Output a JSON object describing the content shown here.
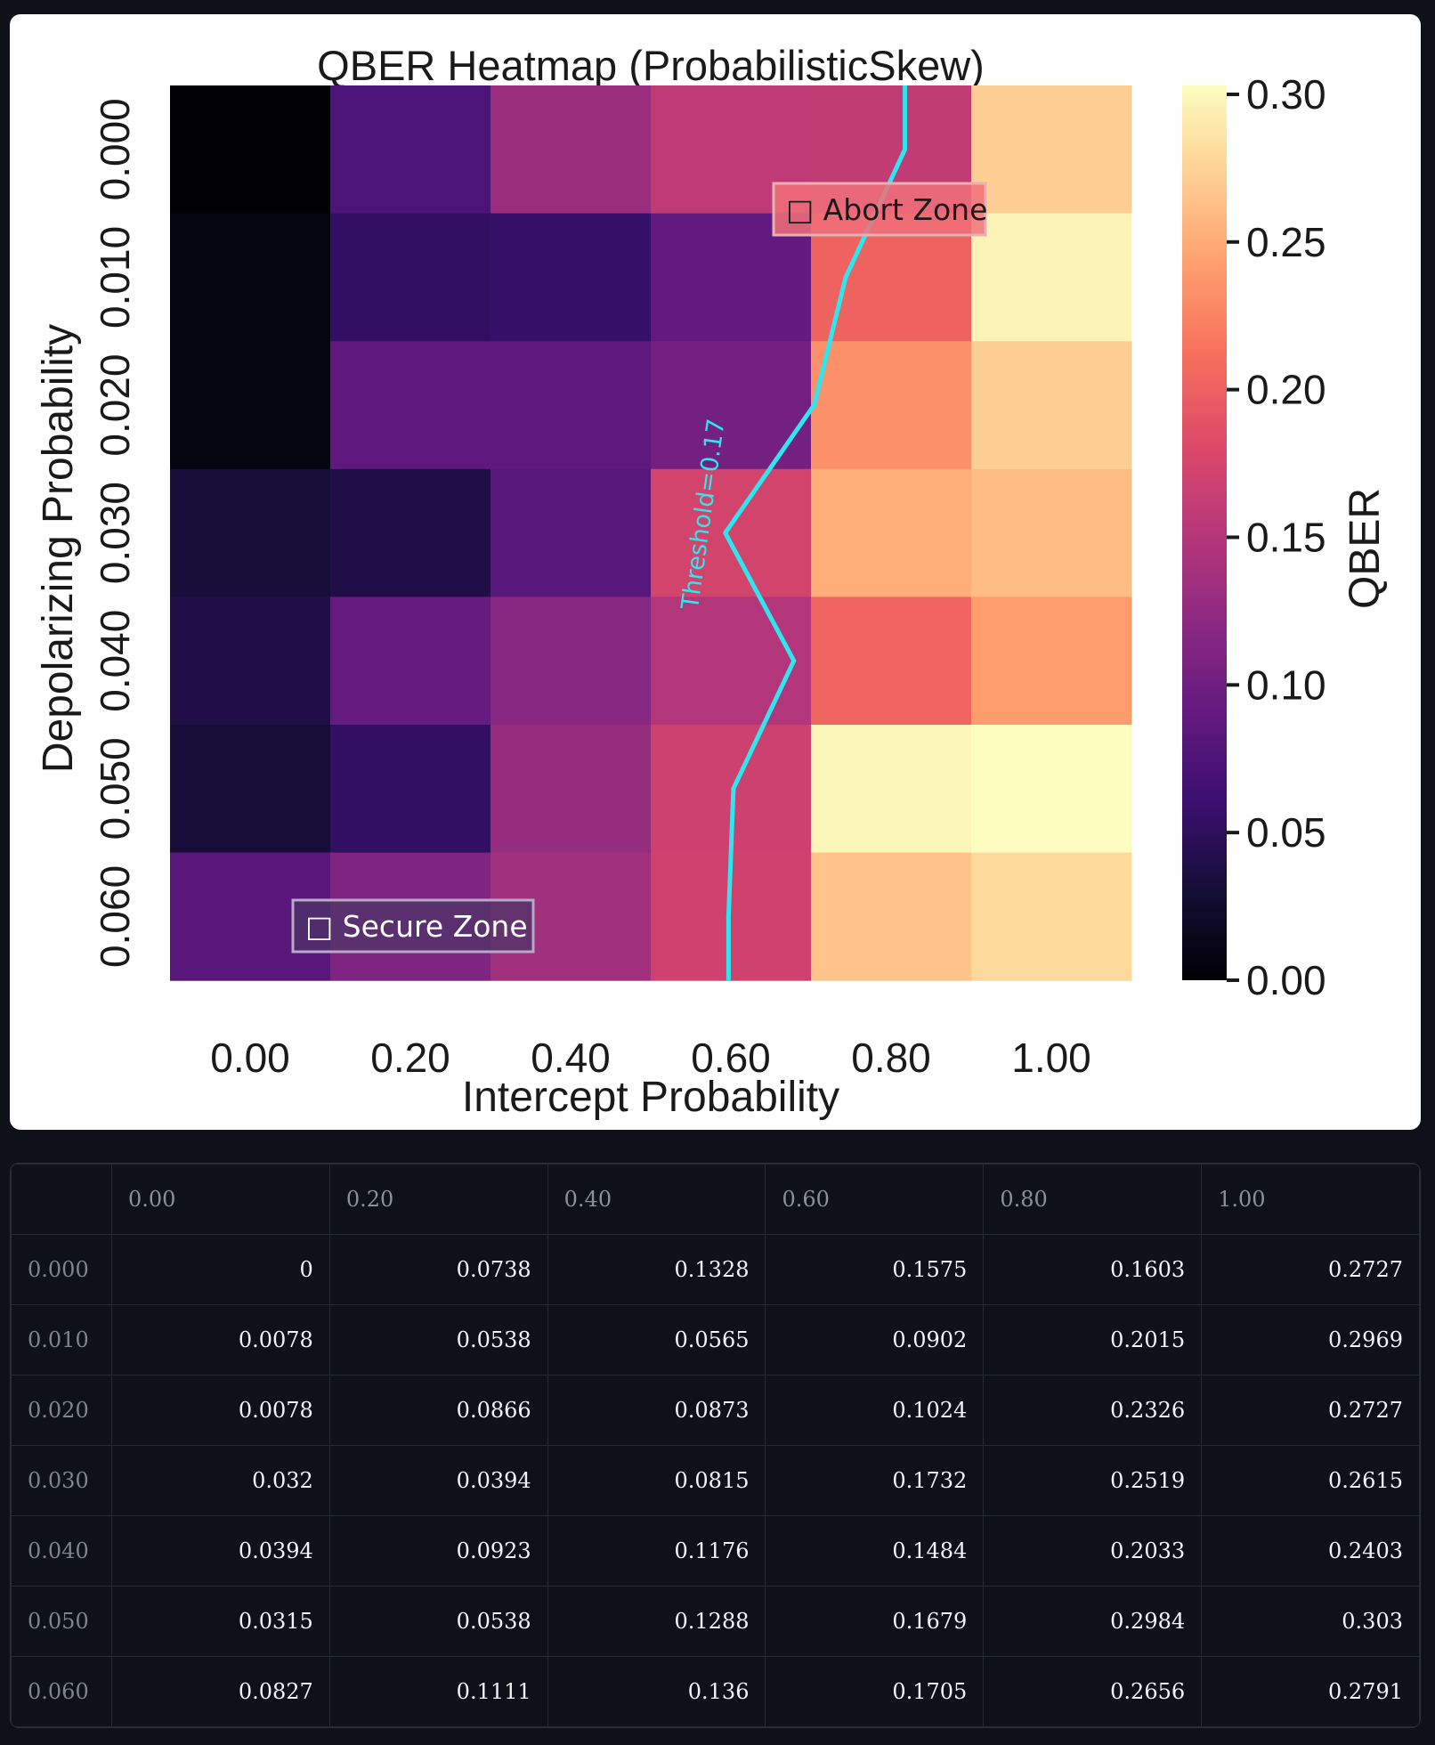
{
  "chart_data": {
    "type": "heatmap",
    "title": "QBER Heatmap (ProbabilisticSkew)",
    "xlabel": "Intercept Probability",
    "ylabel": "Depolarizing Probability",
    "x": [
      "0.00",
      "0.20",
      "0.40",
      "0.60",
      "0.80",
      "1.00"
    ],
    "y": [
      "0.000",
      "0.010",
      "0.020",
      "0.030",
      "0.040",
      "0.050",
      "0.060"
    ],
    "z": [
      [
        0,
        0.0738,
        0.1328,
        0.1575,
        0.1603,
        0.2727
      ],
      [
        0.0078,
        0.0538,
        0.0565,
        0.0902,
        0.2015,
        0.2969
      ],
      [
        0.0078,
        0.0866,
        0.0873,
        0.1024,
        0.2326,
        0.2727
      ],
      [
        0.032,
        0.0394,
        0.0815,
        0.1732,
        0.2519,
        0.2615
      ],
      [
        0.0394,
        0.0923,
        0.1176,
        0.1484,
        0.2033,
        0.2403
      ],
      [
        0.0315,
        0.0538,
        0.1288,
        0.1679,
        0.2984,
        0.303
      ],
      [
        0.0827,
        0.1111,
        0.136,
        0.1705,
        0.2656,
        0.2791
      ]
    ],
    "zlim": [
      0,
      0.303
    ],
    "colormap": "magma",
    "colorbar": {
      "label": "QBER",
      "ticks": [
        "0.00",
        "0.05",
        "0.10",
        "0.15",
        "0.20",
        "0.25",
        "0.30"
      ],
      "tick_values": [
        0,
        0.05,
        0.1,
        0.15,
        0.2,
        0.25,
        0.3
      ]
    },
    "threshold": {
      "value": 0.17,
      "label": "Threshold=0.17",
      "color": "#2ee6ee"
    },
    "annotations": [
      {
        "text": "□ Abort Zone",
        "position": "upper-right"
      },
      {
        "text": "□ Secure Zone",
        "position": "lower-left"
      }
    ]
  },
  "table": {
    "columns": [
      "",
      "0.00",
      "0.20",
      "0.40",
      "0.60",
      "0.80",
      "1.00"
    ],
    "rows": [
      [
        "0.000",
        "0",
        "0.0738",
        "0.1328",
        "0.1575",
        "0.1603",
        "0.2727"
      ],
      [
        "0.010",
        "0.0078",
        "0.0538",
        "0.0565",
        "0.0902",
        "0.2015",
        "0.2969"
      ],
      [
        "0.020",
        "0.0078",
        "0.0866",
        "0.0873",
        "0.1024",
        "0.2326",
        "0.2727"
      ],
      [
        "0.030",
        "0.032",
        "0.0394",
        "0.0815",
        "0.1732",
        "0.2519",
        "0.2615"
      ],
      [
        "0.040",
        "0.0394",
        "0.0923",
        "0.1176",
        "0.1484",
        "0.2033",
        "0.2403"
      ],
      [
        "0.050",
        "0.0315",
        "0.0538",
        "0.1288",
        "0.1679",
        "0.2984",
        "0.303"
      ],
      [
        "0.060",
        "0.0827",
        "0.1111",
        "0.136",
        "0.1705",
        "0.2656",
        "0.2791"
      ]
    ]
  }
}
